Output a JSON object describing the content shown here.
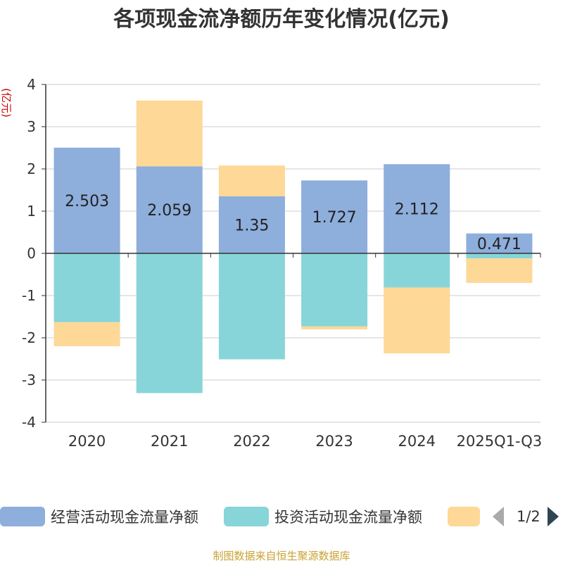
{
  "chart_data": {
    "type": "bar",
    "stacked": true,
    "title": "各项现金流净额历年变化情况(亿元)",
    "ylabel": "(亿元)",
    "xlabel": "",
    "ylim": [
      -4,
      4
    ],
    "yticks": [
      -4,
      -3,
      -2,
      -1,
      0,
      1,
      2,
      3,
      4
    ],
    "categories": [
      "2020",
      "2021",
      "2022",
      "2023",
      "2024",
      "2025Q1-Q3"
    ],
    "grid": true,
    "legend_position": "bottom",
    "series": [
      {
        "name": "经营活动现金流量净额",
        "color": "#8eaedc",
        "values": [
          2.503,
          2.059,
          1.35,
          1.727,
          2.112,
          0.471
        ],
        "labels": [
          "2.503",
          "2.059",
          "1.35",
          "1.727",
          "2.112",
          "0.471"
        ]
      },
      {
        "name": "投资活动现金流量净额",
        "color": "#87d5d8",
        "values": [
          -1.63,
          -3.31,
          -2.51,
          -1.73,
          -0.81,
          -0.12
        ]
      },
      {
        "name": "",
        "color": "#fed897",
        "values": [
          -0.57,
          1.56,
          0.73,
          -0.07,
          -1.56,
          -0.58
        ]
      }
    ]
  },
  "legend": {
    "pager_text": "1/2"
  },
  "source_note": "制图数据来自恒生聚源数据库"
}
